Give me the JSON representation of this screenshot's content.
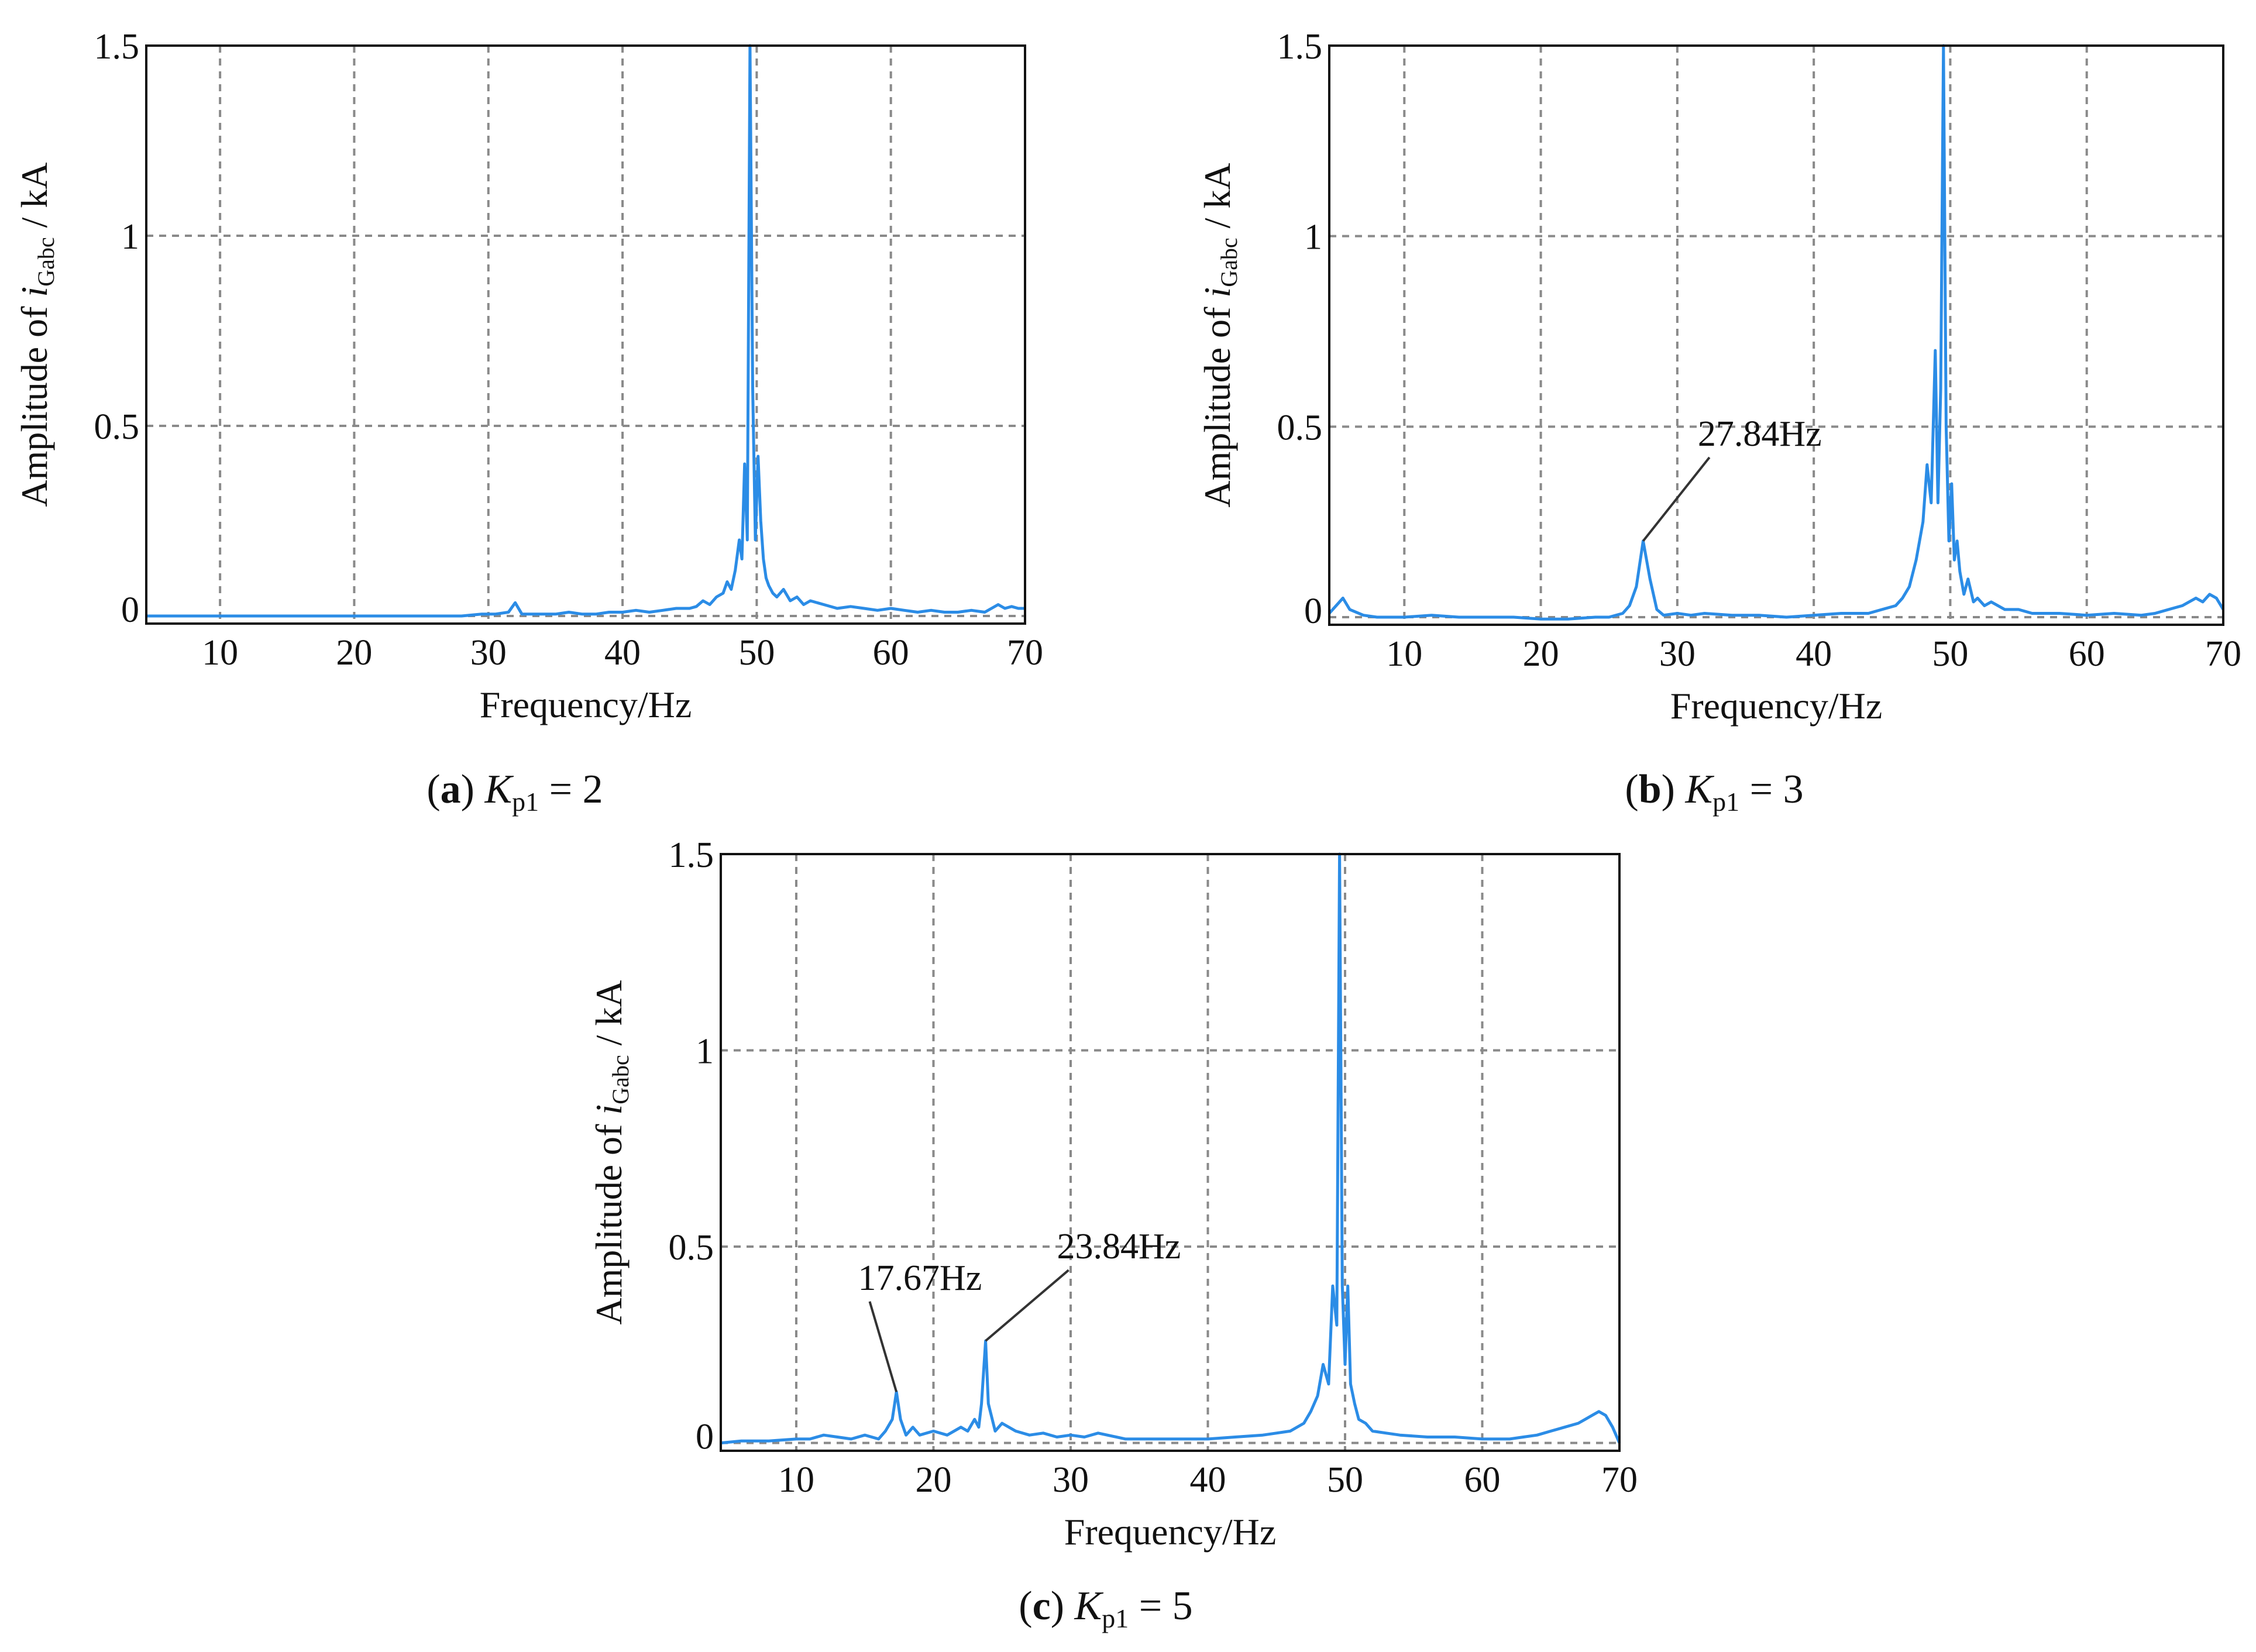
{
  "chart_data": [
    {
      "type": "line",
      "panel_label": "a",
      "caption_symbol": "K",
      "caption_subscript": "p1",
      "caption_value": "= 2",
      "xlabel": "Frequency/Hz",
      "ylabel_prefix": "Amplitude of ",
      "ylabel_var": "i",
      "ylabel_sub": "Gabc",
      "ylabel_suffix": " / kA",
      "xlim": [
        4.5,
        70
      ],
      "ylim": [
        -0.02,
        1.5
      ],
      "xticks": [
        "10",
        "20",
        "30",
        "40",
        "50",
        "60",
        "70"
      ],
      "yticks": [
        "0",
        "0.5",
        "1",
        "1.5"
      ],
      "grid": true,
      "color": "#2b8ce6",
      "annotations": [],
      "series": [
        {
          "x": [
            4.5,
            6,
            8,
            10,
            12,
            14,
            16,
            18,
            20,
            22,
            24,
            26,
            28,
            29.5,
            30.5,
            31.5,
            32,
            32.5,
            33.5,
            35,
            36,
            37,
            38,
            39,
            40,
            41,
            42,
            43,
            44,
            45,
            45.5,
            46,
            46.5,
            47,
            47.5,
            47.8,
            48.1,
            48.4,
            48.7,
            48.9,
            49.1,
            49.3,
            49.5,
            49.7,
            49.9,
            50.1,
            50.3,
            50.5,
            50.7,
            50.9,
            51.2,
            51.5,
            52,
            52.5,
            53,
            53.5,
            54,
            55,
            56,
            57,
            58,
            59,
            60,
            61,
            62,
            63,
            64,
            65,
            66,
            67,
            68,
            68.5,
            69,
            69.5,
            70
          ],
          "y": [
            0.0,
            0.0,
            0.0,
            0.0,
            0.0,
            0.0,
            0.0,
            0.0,
            0.0,
            0.0,
            0.0,
            0.0,
            0.0,
            0.005,
            0.005,
            0.01,
            0.035,
            0.005,
            0.005,
            0.005,
            0.01,
            0.005,
            0.005,
            0.01,
            0.01,
            0.015,
            0.01,
            0.015,
            0.02,
            0.02,
            0.025,
            0.04,
            0.03,
            0.05,
            0.06,
            0.09,
            0.07,
            0.12,
            0.2,
            0.15,
            0.4,
            0.2,
            1.5,
            0.6,
            0.2,
            0.42,
            0.25,
            0.15,
            0.1,
            0.08,
            0.06,
            0.05,
            0.07,
            0.04,
            0.05,
            0.03,
            0.04,
            0.03,
            0.02,
            0.025,
            0.02,
            0.015,
            0.02,
            0.015,
            0.01,
            0.015,
            0.01,
            0.01,
            0.015,
            0.01,
            0.03,
            0.02,
            0.025,
            0.02,
            0.02
          ]
        }
      ]
    },
    {
      "type": "line",
      "panel_label": "b",
      "caption_symbol": "K",
      "caption_subscript": "p1",
      "caption_value": "= 3",
      "xlabel": "Frequency/Hz",
      "ylabel_prefix": "Amplitude of ",
      "ylabel_var": "i",
      "ylabel_sub": "Gabc",
      "ylabel_suffix": " / kA",
      "xlim": [
        4.5,
        70
      ],
      "ylim": [
        -0.02,
        1.5
      ],
      "xticks": [
        "10",
        "20",
        "30",
        "40",
        "50",
        "60",
        "70"
      ],
      "yticks": [
        "0",
        "0.5",
        "1",
        "1.5"
      ],
      "grid": true,
      "color": "#2b8ce6",
      "annotations": [
        {
          "text": "27.84Hz",
          "x": 27.5,
          "y": 0.2,
          "label_x": 31.5,
          "label_y": 0.45
        }
      ],
      "series": [
        {
          "x": [
            4.5,
            5,
            5.5,
            6,
            7,
            8,
            9,
            10,
            12,
            14,
            16,
            18,
            20,
            22,
            24,
            25,
            26,
            26.5,
            27,
            27.5,
            28,
            28.5,
            29,
            30,
            31,
            32,
            34,
            36,
            38,
            40,
            42,
            44,
            45,
            46,
            46.5,
            47,
            47.5,
            48,
            48.3,
            48.6,
            48.9,
            49.1,
            49.3,
            49.5,
            49.7,
            49.9,
            50.1,
            50.3,
            50.5,
            50.7,
            51,
            51.3,
            51.7,
            52,
            52.5,
            53,
            54,
            55,
            56,
            58,
            60,
            62,
            64,
            65,
            66,
            67,
            68,
            68.5,
            69,
            69.5,
            70
          ],
          "y": [
            0.01,
            0.03,
            0.05,
            0.02,
            0.005,
            0.0,
            0.0,
            0.0,
            0.005,
            0.0,
            0.0,
            0.0,
            -0.005,
            -0.005,
            0.0,
            0.0,
            0.01,
            0.03,
            0.08,
            0.2,
            0.1,
            0.02,
            0.005,
            0.01,
            0.005,
            0.01,
            0.005,
            0.005,
            0.0,
            0.005,
            0.01,
            0.01,
            0.02,
            0.03,
            0.05,
            0.08,
            0.15,
            0.25,
            0.4,
            0.3,
            0.7,
            0.3,
            0.6,
            1.5,
            0.5,
            0.2,
            0.35,
            0.15,
            0.2,
            0.12,
            0.06,
            0.1,
            0.04,
            0.05,
            0.03,
            0.04,
            0.02,
            0.02,
            0.01,
            0.01,
            0.005,
            0.01,
            0.005,
            0.01,
            0.02,
            0.03,
            0.05,
            0.04,
            0.06,
            0.05,
            0.02
          ]
        }
      ]
    },
    {
      "type": "line",
      "panel_label": "c",
      "caption_symbol": "K",
      "caption_subscript": "p1",
      "caption_value": "= 5",
      "xlabel": "Frequency/Hz",
      "ylabel_prefix": "Amplitude of ",
      "ylabel_var": "i",
      "ylabel_sub": "Gabc",
      "ylabel_suffix": " / kA",
      "xlim": [
        4.5,
        70
      ],
      "ylim": [
        -0.02,
        1.5
      ],
      "xticks": [
        "10",
        "20",
        "30",
        "40",
        "50",
        "60",
        "70"
      ],
      "yticks": [
        "0",
        "0.5",
        "1",
        "1.5"
      ],
      "grid": true,
      "color": "#2b8ce6",
      "annotations": [
        {
          "text": "17.67Hz",
          "x": 17.3,
          "y": 0.13,
          "label_x": 14.5,
          "label_y": 0.39
        },
        {
          "text": "23.84Hz",
          "x": 23.8,
          "y": 0.26,
          "label_x": 29,
          "label_y": 0.47
        }
      ],
      "series": [
        {
          "x": [
            4.5,
            6,
            8,
            10,
            11,
            12,
            13,
            14,
            15,
            16,
            16.5,
            17,
            17.3,
            17.6,
            18,
            18.5,
            19,
            20,
            21,
            22,
            22.5,
            23,
            23.3,
            23.5,
            23.8,
            24,
            24.5,
            25,
            26,
            27,
            28,
            29,
            30,
            31,
            32,
            34,
            36,
            38,
            40,
            42,
            44,
            45,
            46,
            47,
            47.5,
            48,
            48.4,
            48.8,
            49.1,
            49.4,
            49.6,
            49.8,
            50,
            50.2,
            50.4,
            50.7,
            51,
            51.5,
            52,
            53,
            54,
            56,
            58,
            60,
            62,
            63,
            64,
            65,
            66,
            67,
            67.5,
            68,
            68.5,
            69,
            69.5,
            70
          ],
          "y": [
            0.0,
            0.005,
            0.005,
            0.01,
            0.01,
            0.02,
            0.015,
            0.01,
            0.02,
            0.01,
            0.03,
            0.06,
            0.13,
            0.06,
            0.02,
            0.04,
            0.02,
            0.03,
            0.02,
            0.04,
            0.03,
            0.06,
            0.04,
            0.1,
            0.26,
            0.1,
            0.03,
            0.05,
            0.03,
            0.02,
            0.025,
            0.015,
            0.02,
            0.015,
            0.025,
            0.01,
            0.01,
            0.01,
            0.01,
            0.015,
            0.02,
            0.025,
            0.03,
            0.05,
            0.08,
            0.12,
            0.2,
            0.15,
            0.4,
            0.3,
            1.5,
            0.4,
            0.2,
            0.4,
            0.15,
            0.1,
            0.06,
            0.05,
            0.03,
            0.025,
            0.02,
            0.015,
            0.015,
            0.01,
            0.01,
            0.015,
            0.02,
            0.03,
            0.04,
            0.05,
            0.06,
            0.07,
            0.08,
            0.07,
            0.04,
            0.0
          ]
        }
      ]
    }
  ]
}
